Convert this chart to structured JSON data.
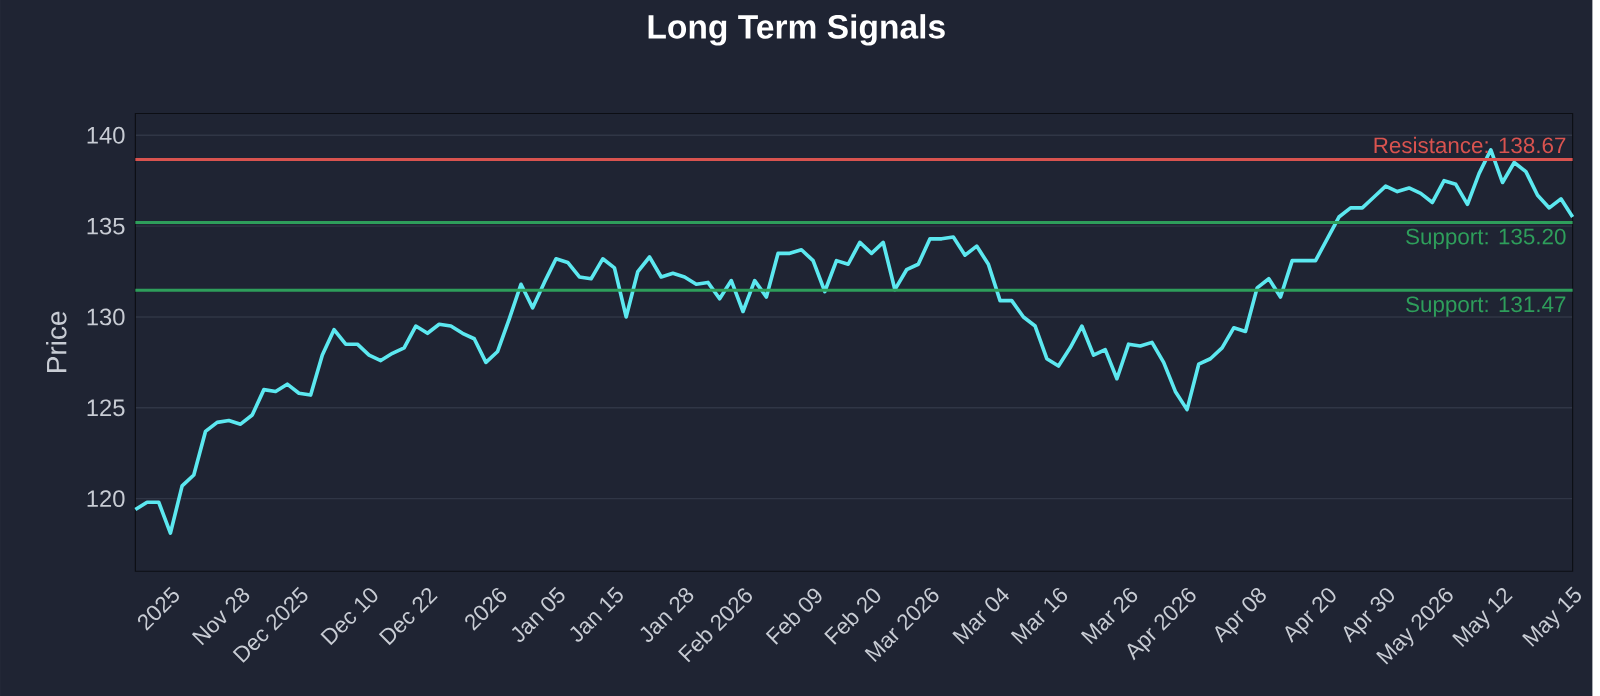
{
  "chart_data": {
    "type": "line",
    "title": "Long Term Signals",
    "ylabel": "Price",
    "categories": [
      null,
      null,
      null,
      "2025",
      null,
      null,
      null,
      null,
      null,
      "Nov 28",
      null,
      null,
      null,
      null,
      "Dec 2025",
      null,
      null,
      null,
      null,
      null,
      "Dec 10",
      null,
      null,
      null,
      null,
      "Dec 22",
      null,
      null,
      null,
      null,
      null,
      "2026",
      null,
      null,
      null,
      null,
      "Jan 05",
      null,
      null,
      null,
      null,
      "Jan 15",
      null,
      null,
      null,
      null,
      null,
      "Jan 28",
      null,
      null,
      null,
      null,
      "Feb 2026",
      null,
      null,
      null,
      null,
      null,
      "Feb 09",
      null,
      null,
      null,
      null,
      "Feb 20",
      null,
      null,
      null,
      null,
      "Mar 2026",
      null,
      null,
      null,
      null,
      null,
      "Mar 04",
      null,
      null,
      null,
      null,
      "Mar 16",
      null,
      null,
      null,
      null,
      null,
      "Mar 26",
      null,
      null,
      null,
      null,
      "Apr 2026",
      null,
      null,
      null,
      null,
      null,
      "Apr 08",
      null,
      null,
      null,
      null,
      null,
      "Apr 20",
      null,
      null,
      null,
      null,
      "Apr 30",
      null,
      null,
      null,
      null,
      "May 2026",
      null,
      null,
      null,
      null,
      "May 12",
      null,
      null,
      null,
      null,
      null,
      "May 15"
    ],
    "series": [
      {
        "color": "#5ce8f0",
        "values": [
          119.4,
          119.8,
          119.8,
          118.1,
          120.7,
          121.3,
          123.7,
          124.2,
          124.3,
          124.1,
          124.6,
          126.0,
          125.9,
          126.3,
          125.8,
          125.7,
          127.9,
          129.3,
          128.5,
          128.5,
          127.9,
          127.6,
          128.0,
          128.3,
          129.5,
          129.1,
          129.6,
          129.5,
          129.1,
          128.8,
          127.5,
          128.1,
          129.9,
          131.8,
          130.5,
          131.9,
          133.2,
          133.0,
          132.2,
          132.1,
          133.2,
          132.7,
          130.0,
          132.5,
          133.3,
          132.2,
          132.4,
          132.2,
          131.8,
          131.9,
          131.0,
          132.0,
          130.3,
          132.0,
          131.1,
          133.5,
          133.5,
          133.7,
          133.1,
          131.4,
          133.1,
          132.9,
          134.1,
          133.5,
          134.1,
          131.5,
          132.6,
          132.9,
          134.3,
          134.3,
          134.4,
          133.4,
          133.9,
          132.9,
          130.9,
          130.9,
          130.0,
          129.5,
          127.7,
          127.3,
          128.3,
          129.5,
          127.9,
          128.2,
          126.6,
          128.5,
          128.4,
          128.6,
          127.5,
          125.9,
          124.9,
          127.4,
          127.7,
          128.3,
          129.4,
          129.2,
          131.6,
          132.1,
          131.1,
          133.1,
          133.1,
          133.1,
          134.3,
          135.5,
          136.0,
          136.0,
          136.6,
          137.2,
          136.9,
          137.1,
          136.8,
          136.3,
          137.5,
          137.3,
          136.2,
          137.9,
          139.2,
          137.4,
          138.5,
          138.0,
          136.7,
          136.0,
          136.5,
          135.5
        ]
      }
    ],
    "ylim": [
      116,
      141.2
    ],
    "yticks": [
      120,
      125,
      130,
      135,
      140
    ],
    "grid": "y",
    "ref_lines": [
      {
        "axis": "y",
        "value": 138.67,
        "label": "Resistance: 138.67",
        "color": "#d9534f"
      },
      {
        "axis": "y",
        "value": 135.2,
        "label": "Support: 135.20",
        "color": "#2e9e5b"
      },
      {
        "axis": "y",
        "value": 131.47,
        "label": "Support: 131.47",
        "color": "#2e9e5b"
      }
    ]
  }
}
